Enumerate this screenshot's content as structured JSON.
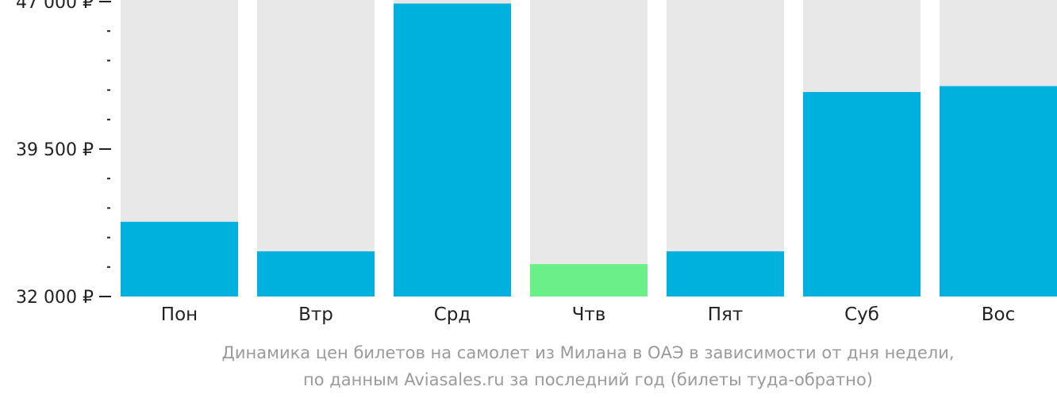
{
  "chart_data": {
    "type": "bar",
    "categories": [
      "Пон",
      "Втр",
      "Срд",
      "Чтв",
      "Пят",
      "Суб",
      "Вос"
    ],
    "values": [
      35800,
      34300,
      46900,
      33650,
      34300,
      42400,
      42700
    ],
    "highlight_index": 3,
    "ylim": [
      32000,
      47000
    ],
    "yticks": [
      {
        "value": 47000,
        "label": "47 000 ₽"
      },
      {
        "value": 39500,
        "label": "39 500 ₽"
      },
      {
        "value": 32000,
        "label": "32 000 ₽"
      }
    ],
    "minor_tick_step": 1500,
    "grid": false,
    "legend": "none",
    "colors": {
      "bar": "#00b0dd",
      "highlight": "#6af089",
      "background_bar": "#e8e8e8",
      "axis": "#222222"
    }
  },
  "caption": {
    "line1": "Динамика цен билетов на самолет из Милана в ОАЭ в зависимости от дня недели,",
    "line2": "по данным Aviasales.ru за последний год (билеты туда-обратно)"
  }
}
